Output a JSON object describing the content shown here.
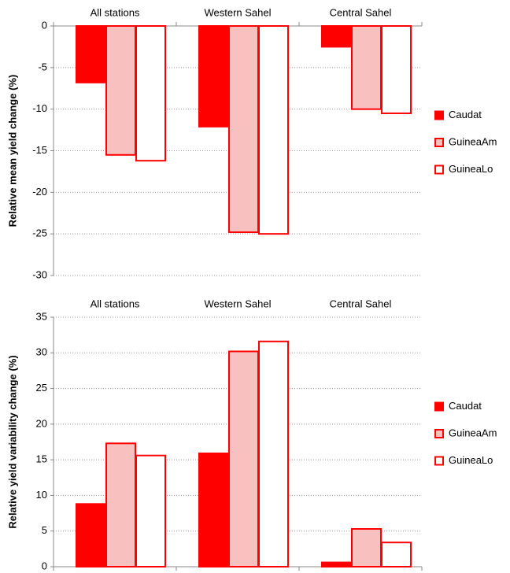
{
  "chart_data": [
    {
      "type": "bar",
      "y_label": "Relative mean yield change (%)",
      "categories": [
        "All stations",
        "Western Sahel",
        "Central Sahel"
      ],
      "series": [
        {
          "name": "Caudat",
          "color": "#ff0000",
          "fill": "#ff0000",
          "values": [
            -6.8,
            -12.1,
            -2.5
          ]
        },
        {
          "name": "GuineaAm",
          "color": "#ff0000",
          "fill": "#f9c0c0",
          "values": [
            -15.5,
            -24.8,
            -10
          ]
        },
        {
          "name": "GuineaLo",
          "color": "#ff0000",
          "fill": "#ffffff",
          "values": [
            -16.2,
            -25,
            -10.5
          ]
        }
      ],
      "ylim": [
        -30,
        0
      ],
      "yticks": [
        0,
        -5,
        -10,
        -15,
        -20,
        -25,
        -30
      ],
      "grid": true,
      "legend": "right"
    },
    {
      "type": "bar",
      "y_label": "Relative yield variability change (%)",
      "categories": [
        "All stations",
        "Western Sahel",
        "Central Sahel"
      ],
      "series": [
        {
          "name": "Caudat",
          "color": "#ff0000",
          "fill": "#ff0000",
          "values": [
            8.8,
            15.9,
            0.6
          ]
        },
        {
          "name": "GuineaAm",
          "color": "#ff0000",
          "fill": "#f9c0c0",
          "values": [
            17.3,
            30.2,
            5.3
          ]
        },
        {
          "name": "GuineaLo",
          "color": "#ff0000",
          "fill": "#ffffff",
          "values": [
            15.6,
            31.6,
            3.4
          ]
        }
      ],
      "ylim": [
        0,
        35
      ],
      "yticks": [
        0,
        5,
        10,
        15,
        20,
        25,
        30,
        35
      ],
      "grid": true,
      "legend": "right"
    }
  ]
}
